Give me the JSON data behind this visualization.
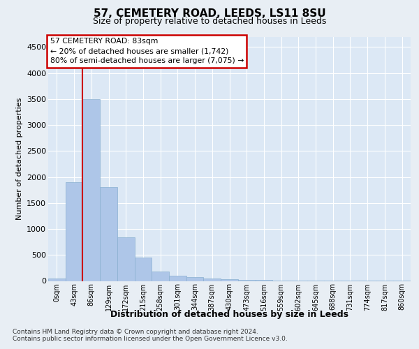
{
  "title": "57, CEMETERY ROAD, LEEDS, LS11 8SU",
  "subtitle": "Size of property relative to detached houses in Leeds",
  "xlabel": "Distribution of detached houses by size in Leeds",
  "ylabel": "Number of detached properties",
  "bins": [
    "0sqm",
    "43sqm",
    "86sqm",
    "129sqm",
    "172sqm",
    "215sqm",
    "258sqm",
    "301sqm",
    "344sqm",
    "387sqm",
    "430sqm",
    "473sqm",
    "516sqm",
    "559sqm",
    "602sqm",
    "645sqm",
    "688sqm",
    "731sqm",
    "774sqm",
    "817sqm",
    "860sqm"
  ],
  "values": [
    50,
    1900,
    3500,
    1800,
    840,
    450,
    175,
    100,
    70,
    50,
    35,
    20,
    15,
    10,
    8,
    6,
    4,
    3,
    2,
    1,
    1
  ],
  "bar_color": "#aec6e8",
  "bar_edge_color": "#8ab0d0",
  "vline_x": 2,
  "vline_color": "#cc0000",
  "annotation_text": "57 CEMETERY ROAD: 83sqm\n← 20% of detached houses are smaller (1,742)\n80% of semi-detached houses are larger (7,075) →",
  "annotation_box_color": "#ffffff",
  "annotation_box_edge": "#cc0000",
  "bg_color": "#e8eef4",
  "plot_bg_color": "#dce8f5",
  "footer1": "Contains HM Land Registry data © Crown copyright and database right 2024.",
  "footer2": "Contains public sector information licensed under the Open Government Licence v3.0.",
  "ylim": [
    0,
    4700
  ],
  "yticks": [
    0,
    500,
    1000,
    1500,
    2000,
    2500,
    3000,
    3500,
    4000,
    4500
  ]
}
